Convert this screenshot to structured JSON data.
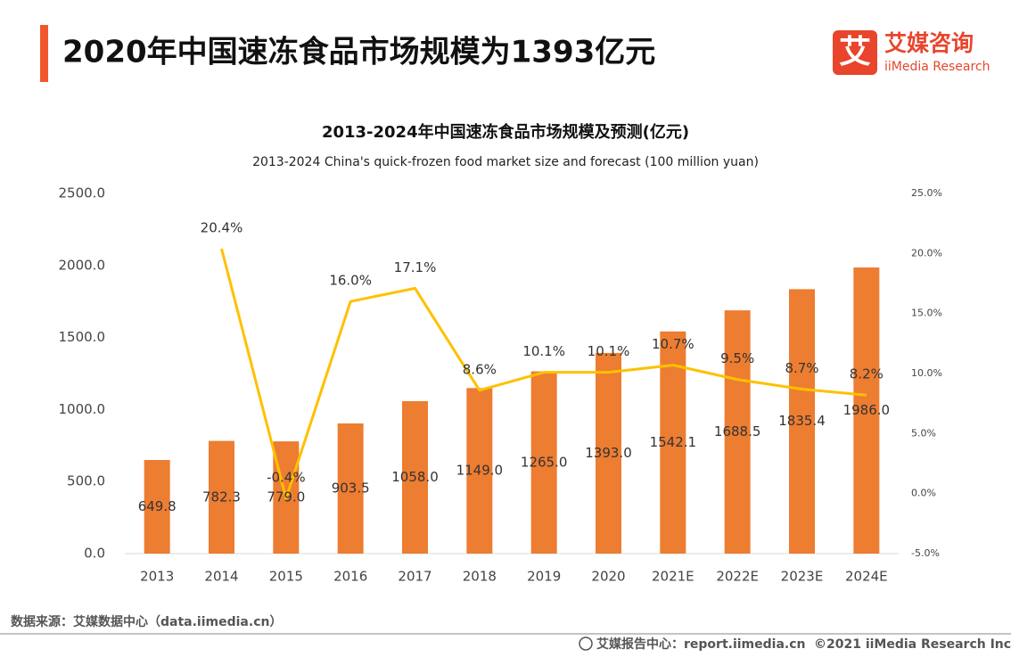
{
  "header": {
    "title": "2020年中国速冻食品市场规模为1393亿元",
    "logo_mark": "艾",
    "logo_name": "艾媒咨询",
    "logo_sub": "iiMedia Research"
  },
  "footer": {
    "source": "数据来源：艾媒数据中心（data.iimedia.cn）",
    "report": "艾媒报告中心：report.iimedia.cn",
    "copyright": "©2021  iiMedia Research  Inc"
  },
  "chart_data": {
    "type": "bar-line",
    "title": "2013-2024年中国速冻食品市场规模及预测(亿元)",
    "subtitle": "2013-2024 China's quick-frozen food market size and forecast (100 million yuan)",
    "categories": [
      "2013",
      "2014",
      "2015",
      "2016",
      "2017",
      "2018",
      "2019",
      "2020",
      "2021E",
      "2022E",
      "2023E",
      "2024E"
    ],
    "series": [
      {
        "type": "bar",
        "color": "#ed7d31",
        "values": [
          649.8,
          782.3,
          779.0,
          903.5,
          1058.0,
          1149.0,
          1265.0,
          1393.0,
          1542.1,
          1688.5,
          1835.4,
          1986.0
        ],
        "value_labels": [
          "649.8",
          "782.3",
          "779.0",
          "903.5",
          "1058.0",
          "1149.0",
          "1265.0",
          "1393.0",
          "1542.1",
          "1688.5",
          "1835.4",
          "1986.0"
        ]
      },
      {
        "type": "line",
        "axis": "y2",
        "color": "#ffc000",
        "values": [
          null,
          20.4,
          -0.4,
          16.0,
          17.1,
          8.6,
          10.1,
          10.1,
          10.7,
          9.5,
          8.7,
          8.2
        ],
        "value_labels": [
          null,
          "20.4%",
          "-0.4%",
          "16.0%",
          "17.1%",
          "8.6%",
          "10.1%",
          "10.1%",
          "10.7%",
          "9.5%",
          "8.7%",
          "8.2%"
        ]
      }
    ],
    "ylim": [
      0,
      2500
    ],
    "yticks": [
      {
        "value": 0,
        "label": "0.0"
      },
      {
        "value": 500,
        "label": "500.0"
      },
      {
        "value": 1000,
        "label": "1000.0"
      },
      {
        "value": 1500,
        "label": "1500.0"
      },
      {
        "value": 2000,
        "label": "2000.0"
      },
      {
        "value": 2500,
        "label": "2500.0"
      }
    ],
    "y2lim": [
      -5,
      25
    ],
    "y2ticks": [
      {
        "value": -5,
        "label": "-5.0%"
      },
      {
        "value": 0,
        "label": "0.0%"
      },
      {
        "value": 5,
        "label": "5.0%"
      },
      {
        "value": 10,
        "label": "10.0%"
      },
      {
        "value": 15,
        "label": "15.0%"
      },
      {
        "value": 20,
        "label": "20.0%"
      },
      {
        "value": 25,
        "label": "25.0%"
      }
    ],
    "grid": false
  }
}
